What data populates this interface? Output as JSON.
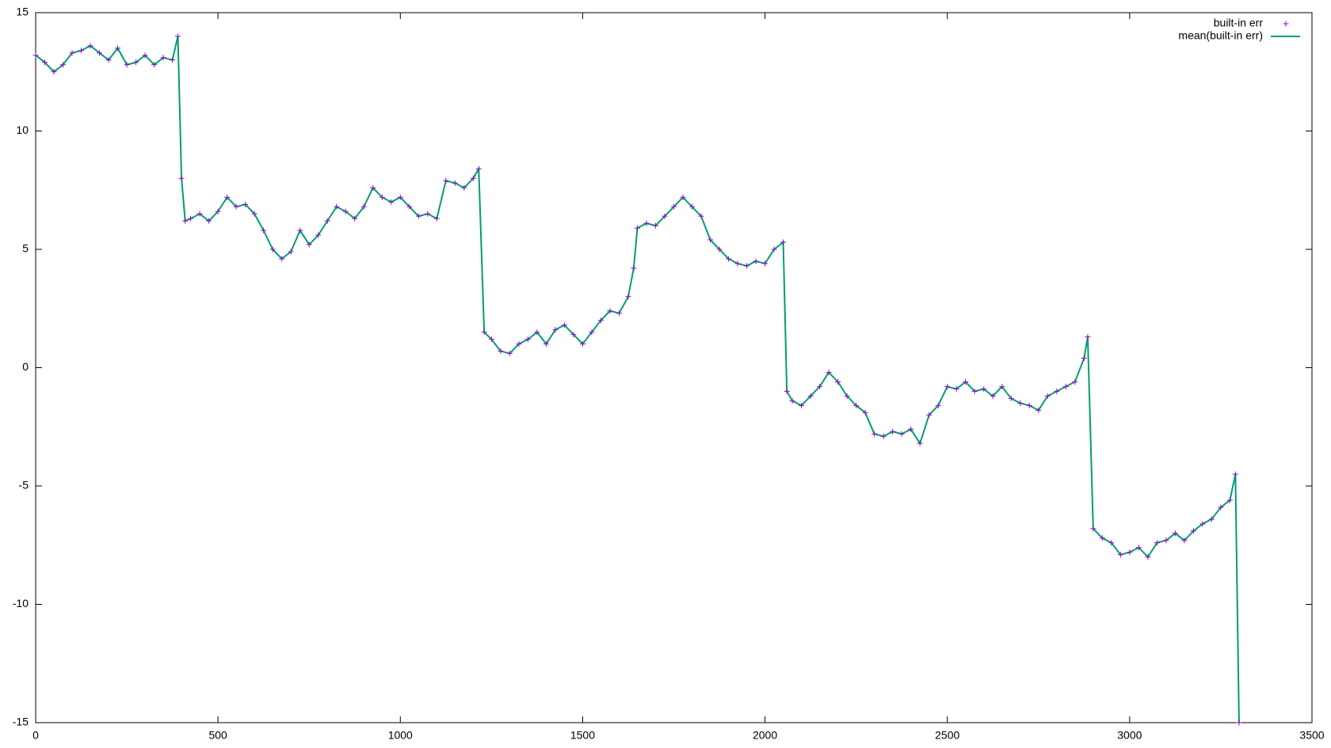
{
  "chart_data": {
    "type": "scatter-line",
    "x": [
      0,
      25,
      50,
      75,
      100,
      125,
      150,
      175,
      200,
      225,
      250,
      275,
      300,
      325,
      350,
      375,
      390,
      400,
      410,
      425,
      450,
      475,
      500,
      525,
      550,
      575,
      600,
      625,
      650,
      675,
      700,
      725,
      750,
      775,
      800,
      825,
      850,
      875,
      900,
      925,
      950,
      975,
      1000,
      1025,
      1050,
      1075,
      1100,
      1125,
      1150,
      1175,
      1200,
      1215,
      1230,
      1250,
      1275,
      1300,
      1325,
      1350,
      1375,
      1400,
      1425,
      1450,
      1475,
      1500,
      1525,
      1550,
      1575,
      1600,
      1625,
      1640,
      1650,
      1675,
      1700,
      1725,
      1750,
      1775,
      1800,
      1825,
      1850,
      1875,
      1900,
      1925,
      1950,
      1975,
      2000,
      2025,
      2050,
      2060,
      2075,
      2100,
      2125,
      2150,
      2175,
      2200,
      2225,
      2250,
      2275,
      2300,
      2325,
      2350,
      2375,
      2400,
      2425,
      2450,
      2475,
      2500,
      2525,
      2550,
      2575,
      2600,
      2625,
      2650,
      2675,
      2700,
      2725,
      2750,
      2775,
      2800,
      2825,
      2850,
      2875,
      2885,
      2900,
      2925,
      2950,
      2975,
      3000,
      3025,
      3050,
      3075,
      3100,
      3125,
      3150,
      3175,
      3200,
      3225,
      3250,
      3275,
      3290,
      3300
    ],
    "series": [
      {
        "name": "built-in err",
        "color": "#9400d3",
        "marker": "plus",
        "values": [
          13.2,
          12.9,
          12.5,
          12.8,
          13.3,
          13.4,
          13.6,
          13.3,
          13.0,
          13.5,
          12.8,
          12.9,
          13.2,
          12.8,
          13.1,
          13.0,
          14.0,
          8.0,
          6.2,
          6.3,
          6.5,
          6.2,
          6.6,
          7.2,
          6.8,
          6.9,
          6.5,
          5.8,
          5.0,
          4.6,
          4.9,
          5.8,
          5.2,
          5.6,
          6.2,
          6.8,
          6.6,
          6.3,
          6.8,
          7.6,
          7.2,
          7.0,
          7.2,
          6.8,
          6.4,
          6.5,
          6.3,
          7.9,
          7.8,
          7.6,
          8.0,
          8.4,
          1.5,
          1.2,
          0.7,
          0.6,
          1.0,
          1.2,
          1.5,
          1.0,
          1.6,
          1.8,
          1.4,
          1.0,
          1.5,
          2.0,
          2.4,
          2.3,
          3.0,
          4.2,
          5.9,
          6.1,
          6.0,
          6.4,
          6.8,
          7.2,
          6.8,
          6.4,
          5.4,
          5.0,
          4.6,
          4.4,
          4.3,
          4.5,
          4.4,
          5.0,
          5.3,
          -1.0,
          -1.4,
          -1.6,
          -1.2,
          -0.8,
          -0.2,
          -0.6,
          -1.2,
          -1.6,
          -1.9,
          -2.8,
          -2.9,
          -2.7,
          -2.8,
          -2.6,
          -3.2,
          -2.0,
          -1.6,
          -0.8,
          -0.9,
          -0.6,
          -1.0,
          -0.9,
          -1.2,
          -0.8,
          -1.3,
          -1.5,
          -1.6,
          -1.8,
          -1.2,
          -1.0,
          -0.8,
          -0.6,
          0.4,
          1.3,
          -6.8,
          -7.2,
          -7.4,
          -7.9,
          -7.8,
          -7.6,
          -8.0,
          -7.4,
          -7.3,
          -7.0,
          -7.3,
          -6.9,
          -6.6,
          -6.4,
          -5.9,
          -5.6,
          -4.5,
          -15
        ]
      },
      {
        "name": "mean(built-in err)",
        "color": "#009e73",
        "marker": "line",
        "values": [
          13.2,
          12.9,
          12.5,
          12.8,
          13.3,
          13.4,
          13.6,
          13.3,
          13.0,
          13.5,
          12.8,
          12.9,
          13.2,
          12.8,
          13.1,
          13.0,
          14.0,
          8.0,
          6.2,
          6.3,
          6.5,
          6.2,
          6.6,
          7.2,
          6.8,
          6.9,
          6.5,
          5.8,
          5.0,
          4.6,
          4.9,
          5.8,
          5.2,
          5.6,
          6.2,
          6.8,
          6.6,
          6.3,
          6.8,
          7.6,
          7.2,
          7.0,
          7.2,
          6.8,
          6.4,
          6.5,
          6.3,
          7.9,
          7.8,
          7.6,
          8.0,
          8.4,
          1.5,
          1.2,
          0.7,
          0.6,
          1.0,
          1.2,
          1.5,
          1.0,
          1.6,
          1.8,
          1.4,
          1.0,
          1.5,
          2.0,
          2.4,
          2.3,
          3.0,
          4.2,
          5.9,
          6.1,
          6.0,
          6.4,
          6.8,
          7.2,
          6.8,
          6.4,
          5.4,
          5.0,
          4.6,
          4.4,
          4.3,
          4.5,
          4.4,
          5.0,
          5.3,
          -1.0,
          -1.4,
          -1.6,
          -1.2,
          -0.8,
          -0.2,
          -0.6,
          -1.2,
          -1.6,
          -1.9,
          -2.8,
          -2.9,
          -2.7,
          -2.8,
          -2.6,
          -3.2,
          -2.0,
          -1.6,
          -0.8,
          -0.9,
          -0.6,
          -1.0,
          -0.9,
          -1.2,
          -0.8,
          -1.3,
          -1.5,
          -1.6,
          -1.8,
          -1.2,
          -1.0,
          -0.8,
          -0.6,
          0.4,
          1.3,
          -6.8,
          -7.2,
          -7.4,
          -7.9,
          -7.8,
          -7.6,
          -8.0,
          -7.4,
          -7.3,
          -7.0,
          -7.3,
          -6.9,
          -6.6,
          -6.4,
          -5.9,
          -5.6,
          -4.5,
          -15
        ]
      }
    ],
    "xlim": [
      0,
      3500
    ],
    "xticks": [
      0,
      500,
      1000,
      1500,
      2000,
      2500,
      3000,
      3500
    ],
    "ylim": [
      -15,
      15
    ],
    "yticks": [
      -15,
      -10,
      -5,
      0,
      5,
      10,
      15
    ],
    "legend": "top-right"
  }
}
